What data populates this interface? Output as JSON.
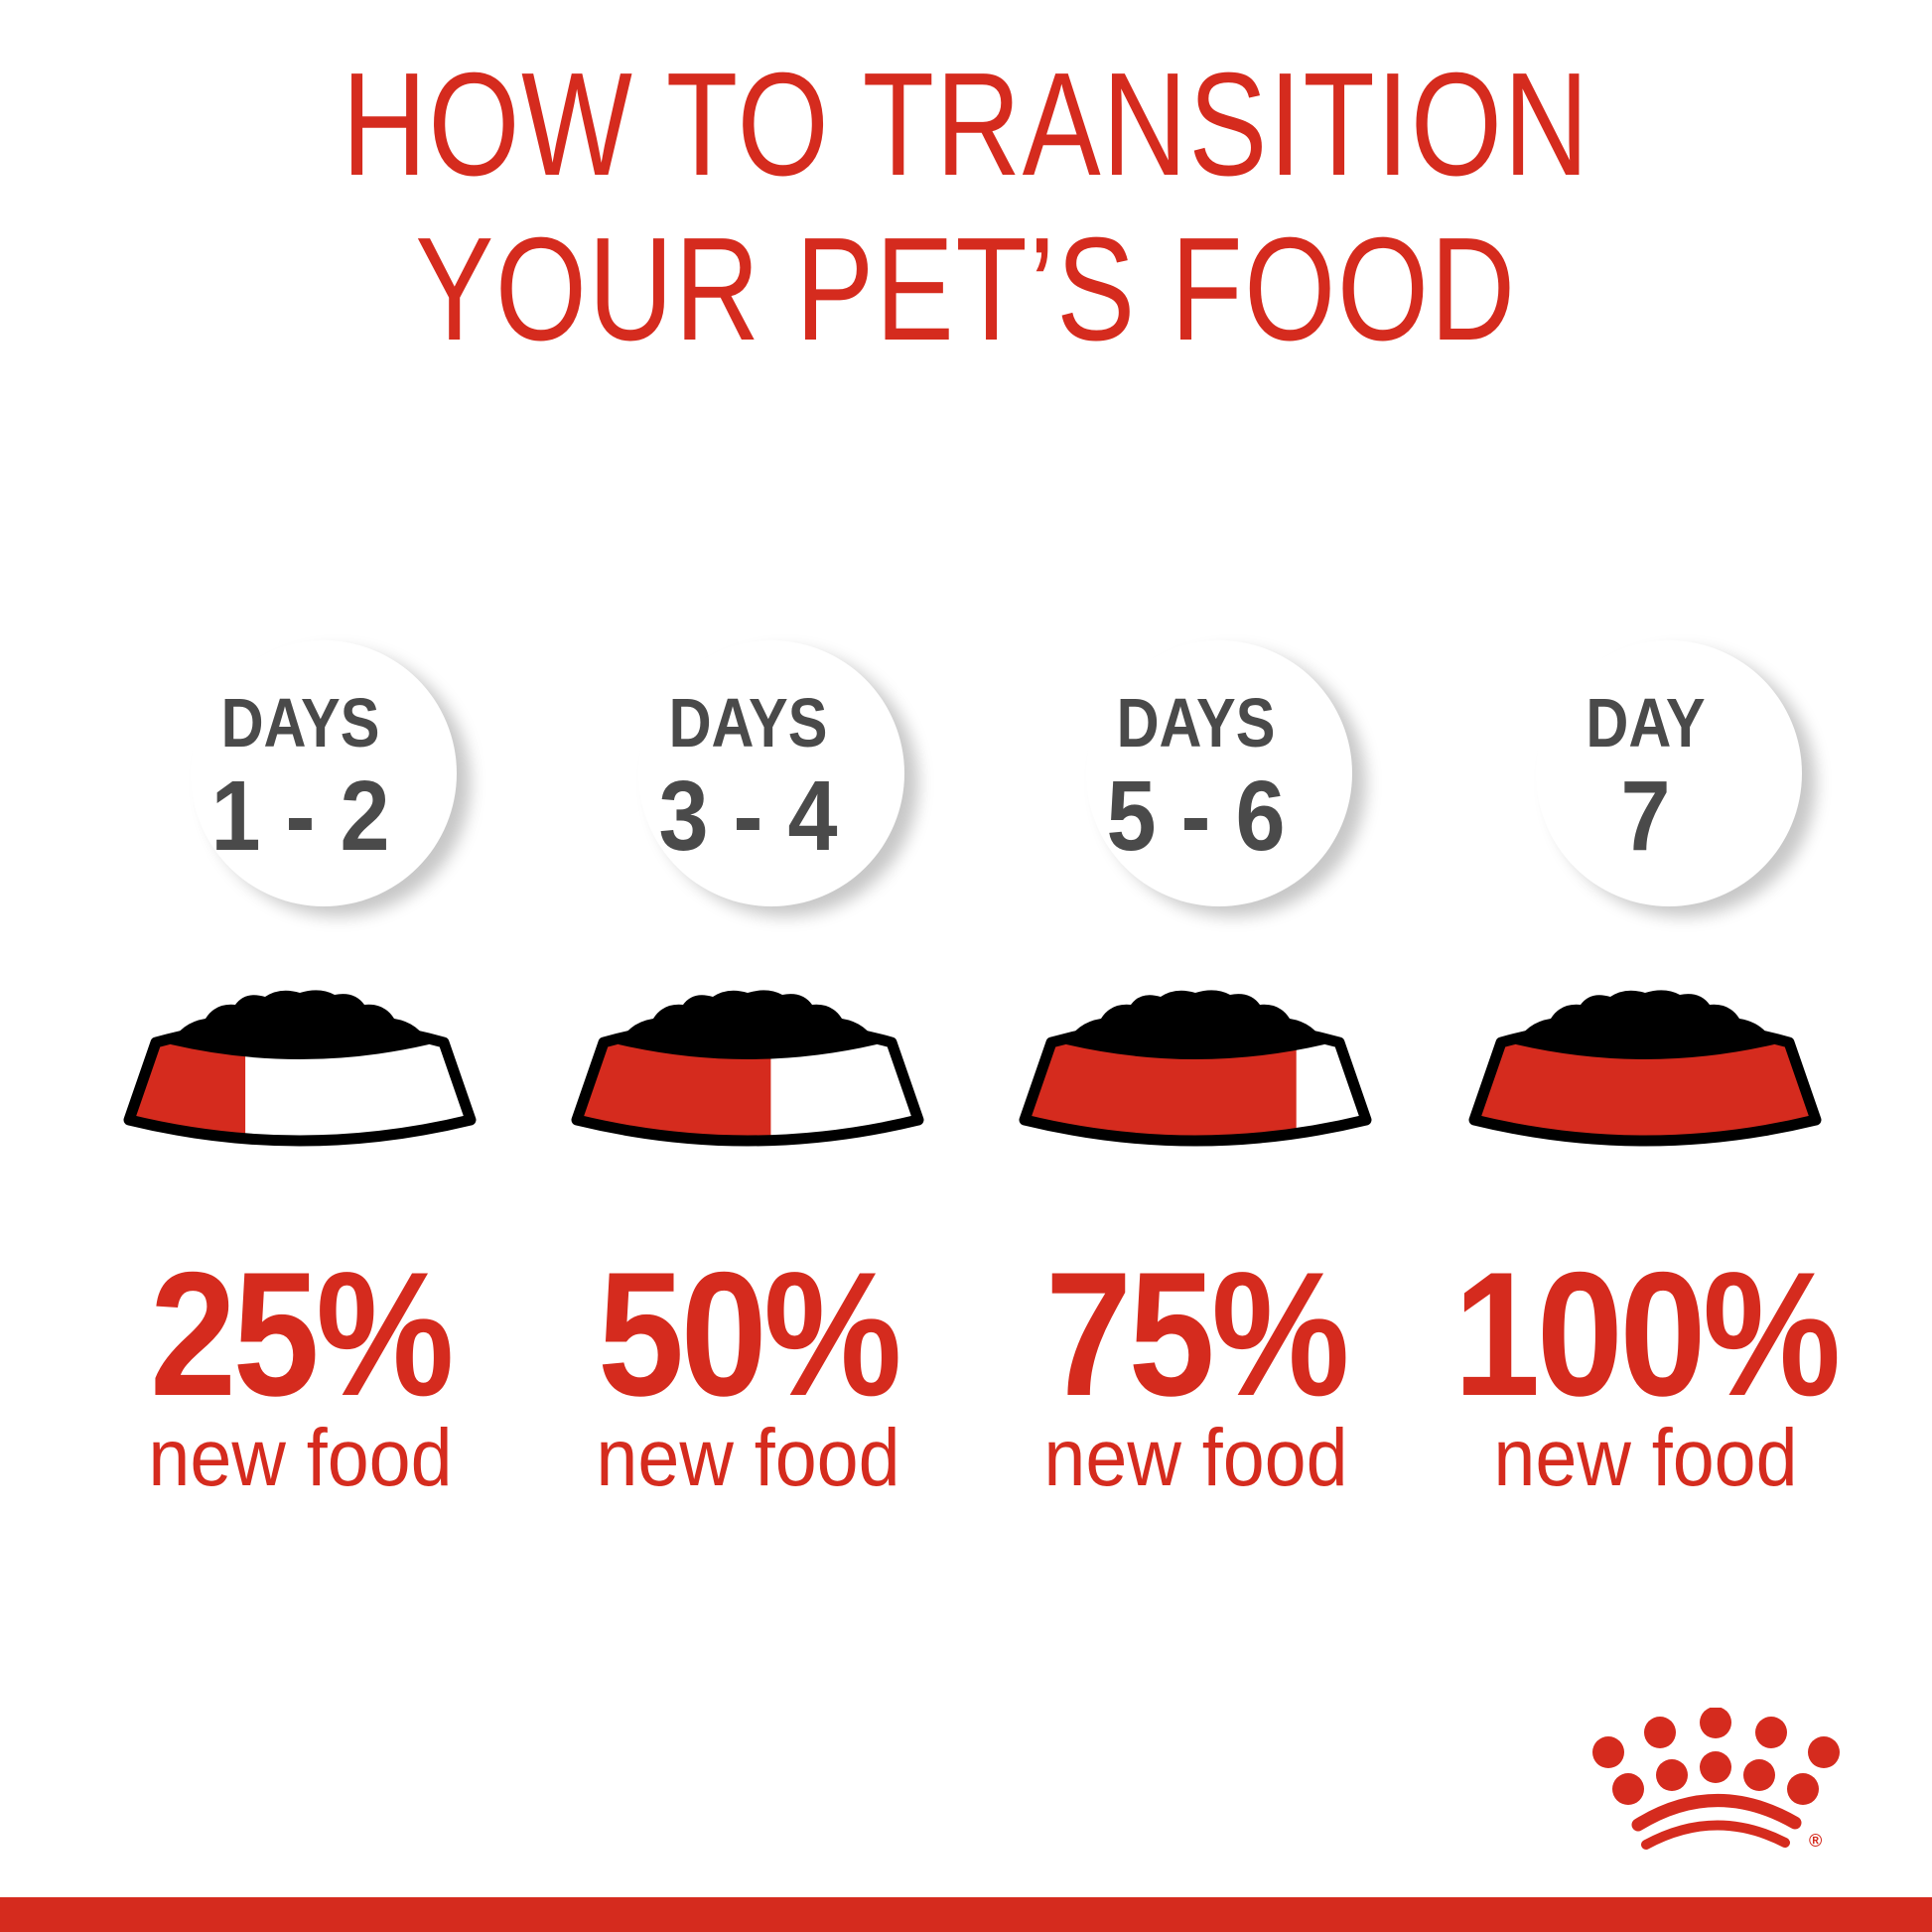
{
  "title": {
    "line1": "HOW TO TRANSITION",
    "line2": "YOUR PET’S FOOD"
  },
  "colors": {
    "brand_red": "#d52b1e",
    "day_text": "#4a4a4a",
    "food": "#000000"
  },
  "steps": [
    {
      "days_label": "DAYS",
      "range": "1 - 2",
      "percent": "25%",
      "new_food_fraction": 0.25,
      "caption": "new food"
    },
    {
      "days_label": "DAYS",
      "range": "3 - 4",
      "percent": "50%",
      "new_food_fraction": 0.5,
      "caption": "new food"
    },
    {
      "days_label": "DAYS",
      "range": "5 - 6",
      "percent": "75%",
      "new_food_fraction": 0.75,
      "caption": "new food"
    },
    {
      "days_label": "DAY",
      "range": "7",
      "percent": "100%",
      "new_food_fraction": 1.0,
      "caption": "new food"
    }
  ],
  "logo": {
    "name": "royal-canin-crown-logo",
    "mark": "®"
  }
}
